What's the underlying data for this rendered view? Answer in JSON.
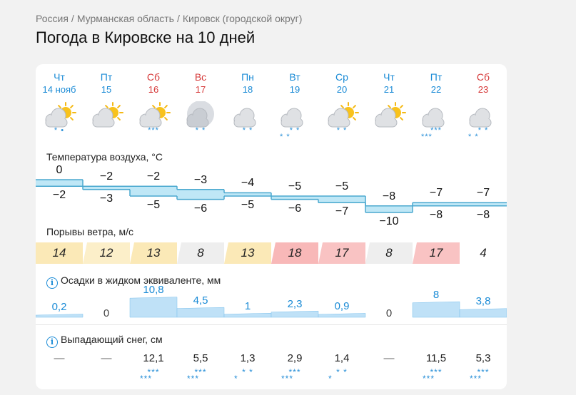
{
  "breadcrumbs": [
    "Россия",
    "Мурманская область",
    "Кировск (городской округ)"
  ],
  "breadcrumb_sep": "/",
  "title": "Погода в Кировске на 10 дней",
  "days": [
    {
      "dow": "Чт",
      "date": "14 нояб",
      "weekend": false,
      "icon": "sun-cloud-icon",
      "sun": true,
      "precip": "* •",
      "tmax": "0",
      "tmin": "−2",
      "tmax_v": 0,
      "tmin_v": -2,
      "gust": "14",
      "gust_color": "#fbe9b7",
      "precip_mm": "0,2",
      "precip_v": 0.2,
      "snow": "—",
      "snow_flakes": ""
    },
    {
      "dow": "Пт",
      "date": "15",
      "weekend": false,
      "icon": "sun-cloud-icon",
      "sun": true,
      "precip": "",
      "tmax": "−2",
      "tmin": "−3",
      "tmax_v": -2,
      "tmin_v": -3,
      "gust": "12",
      "gust_color": "#fcefc9",
      "precip_mm": "0",
      "precip_v": 0,
      "snow": "—",
      "snow_flakes": ""
    },
    {
      "dow": "Сб",
      "date": "16",
      "weekend": true,
      "icon": "sun-cloud-snow-icon",
      "sun": true,
      "precip": "***",
      "tmax": "−2",
      "tmin": "−5",
      "tmax_v": -2,
      "tmin_v": -5,
      "gust": "13",
      "gust_color": "#fbe9b7",
      "precip_mm": "10,8",
      "precip_v": 10.8,
      "snow": "12,1",
      "snow_flakes": "***|***"
    },
    {
      "dow": "Вс",
      "date": "17",
      "weekend": true,
      "icon": "night-cloud-icon",
      "sun": false,
      "precip": "* *",
      "tmax": "−3",
      "tmin": "−6",
      "tmax_v": -3,
      "tmin_v": -6,
      "gust": "8",
      "gust_color": "#eeeeee",
      "precip_mm": "4,5",
      "precip_v": 4.5,
      "snow": "5,5",
      "snow_flakes": "***|***"
    },
    {
      "dow": "Пн",
      "date": "18",
      "weekend": false,
      "icon": "cloud-snow-icon",
      "sun": false,
      "precip": "* *",
      "tmax": "−4",
      "tmin": "−5",
      "tmax_v": -4,
      "tmin_v": -5,
      "gust": "13",
      "gust_color": "#fbe9b7",
      "precip_mm": "1",
      "precip_v": 1,
      "snow": "1,3",
      "snow_flakes": "* *|*"
    },
    {
      "dow": "Вт",
      "date": "19",
      "weekend": false,
      "icon": "cloud-snow-icon",
      "sun": false,
      "precip": "* *|* *",
      "tmax": "−5",
      "tmin": "−6",
      "tmax_v": -5,
      "tmin_v": -6,
      "gust": "18",
      "gust_color": "#f8b8b8",
      "precip_mm": "2,3",
      "precip_v": 2.3,
      "snow": "2,9",
      "snow_flakes": "***|***"
    },
    {
      "dow": "Ср",
      "date": "20",
      "weekend": false,
      "icon": "sun-cloud-snow-icon",
      "sun": true,
      "precip": "* *",
      "tmax": "−5",
      "tmin": "−7",
      "tmax_v": -5,
      "tmin_v": -7,
      "gust": "17",
      "gust_color": "#f9c3c3",
      "precip_mm": "0,9",
      "precip_v": 0.9,
      "snow": "1,4",
      "snow_flakes": "* *|*"
    },
    {
      "dow": "Чт",
      "date": "21",
      "weekend": false,
      "icon": "sun-cloud-icon",
      "sun": true,
      "precip": "",
      "tmax": "−8",
      "tmin": "−10",
      "tmax_v": -8,
      "tmin_v": -10,
      "gust": "8",
      "gust_color": "#eeeeee",
      "precip_mm": "0",
      "precip_v": 0,
      "snow": "—",
      "snow_flakes": ""
    },
    {
      "dow": "Пт",
      "date": "22",
      "weekend": false,
      "icon": "cloud-snow-icon",
      "sun": false,
      "precip": "***|***",
      "tmax": "−7",
      "tmin": "−8",
      "tmax_v": -7,
      "tmin_v": -8,
      "gust": "17",
      "gust_color": "#f9c3c3",
      "precip_mm": "8",
      "precip_v": 8,
      "snow": "11,5",
      "snow_flakes": "***|***"
    },
    {
      "dow": "Сб",
      "date": "23",
      "weekend": true,
      "icon": "cloud-snow-icon",
      "sun": false,
      "precip": "* *|* *",
      "tmax": "−7",
      "tmin": "−8",
      "tmax_v": -7,
      "tmin_v": -8,
      "gust": "4",
      "gust_color": "#ffffff",
      "precip_mm": "3,8",
      "precip_v": 3.8,
      "snow": "5,3",
      "snow_flakes": "***|***"
    }
  ],
  "sections": {
    "temperature": "Температура воздуха, °C",
    "gusts": "Порывы ветра, м/с",
    "precip": "Осадки в жидком эквиваленте, мм",
    "snow": "Выпадающий снег, см"
  },
  "info_glyph": "i"
}
